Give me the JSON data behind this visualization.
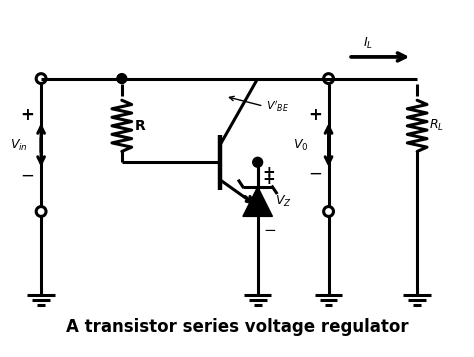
{
  "title": "A transistor series voltage regulator",
  "title_fontsize": 12,
  "bg_color": "#ffffff",
  "line_color": "#000000",
  "lw": 2.2
}
